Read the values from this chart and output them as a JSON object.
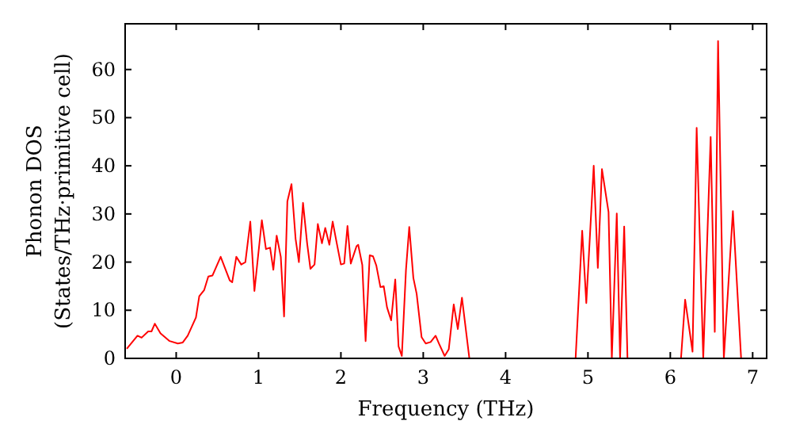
{
  "chart_data": {
    "type": "line",
    "xlabel": "Frequency (THz)",
    "ylabel": "Phonon DOS\n(States/THz·primitive cell)",
    "xlim": [
      -0.62,
      7.17
    ],
    "ylim": [
      0,
      69.5
    ],
    "xticks": [
      0,
      1,
      2,
      3,
      4,
      5,
      6,
      7
    ],
    "yticks": [
      0,
      10,
      20,
      30,
      40,
      50,
      60
    ],
    "grid": false,
    "marker": "none",
    "line_style": "solid",
    "series": [
      {
        "color": "#ff0000",
        "x": [
          -0.6,
          -0.47,
          -0.42,
          -0.34,
          -0.3,
          -0.26,
          -0.19,
          -0.08,
          0.02,
          0.08,
          0.14,
          0.24,
          0.28,
          0.34,
          0.39,
          0.44,
          0.54,
          0.65,
          0.68,
          0.73,
          0.79,
          0.84,
          0.9,
          0.95,
          1.04,
          1.09,
          1.14,
          1.18,
          1.22,
          1.27,
          1.31,
          1.35,
          1.4,
          1.45,
          1.49,
          1.54,
          1.59,
          1.63,
          1.68,
          1.72,
          1.77,
          1.81,
          1.86,
          1.9,
          1.95,
          2.0,
          2.04,
          2.08,
          2.12,
          2.19,
          2.21,
          2.26,
          2.3,
          2.35,
          2.39,
          2.43,
          2.48,
          2.52,
          2.56,
          2.61,
          2.66,
          2.7,
          2.74,
          2.79,
          2.83,
          2.88,
          2.92,
          2.98,
          3.03,
          3.09,
          3.15,
          3.19,
          3.26,
          3.31,
          3.37,
          3.42,
          3.47,
          3.56,
          4.85,
          4.93,
          4.98,
          5.07,
          5.12,
          5.17,
          5.25,
          5.29,
          5.35,
          5.39,
          5.44,
          5.48,
          6.13,
          6.18,
          6.27,
          6.32,
          6.4,
          6.49,
          6.54,
          6.58,
          6.65,
          6.76,
          6.86
        ],
        "values": [
          2,
          4.7,
          4.3,
          5.6,
          5.6,
          7.2,
          5.2,
          3.6,
          3.1,
          3.3,
          4.7,
          8.5,
          12.9,
          14.2,
          17,
          17.2,
          21.1,
          16.2,
          15.8,
          21.1,
          19.5,
          20,
          28.4,
          14,
          28.7,
          22.7,
          23,
          18.4,
          25.5,
          21.1,
          8.7,
          32.6,
          36.2,
          24.8,
          20,
          32.3,
          23.9,
          18.6,
          19.5,
          27.9,
          23.9,
          27.1,
          23.6,
          28.4,
          23.9,
          19.5,
          19.7,
          27.5,
          19.7,
          23.3,
          23.6,
          19.4,
          3.6,
          21.4,
          21.2,
          19.3,
          14.8,
          15,
          10.6,
          7.9,
          16.4,
          2.5,
          0.5,
          18.3,
          27.3,
          16.7,
          13.4,
          4.4,
          3.1,
          3.4,
          4.7,
          3.1,
          0.5,
          1.9,
          11.2,
          6.1,
          12.6,
          0,
          0,
          26.5,
          11.5,
          40,
          18.8,
          39.3,
          30.4,
          0,
          30.1,
          0,
          27.4,
          0,
          0,
          12.2,
          1.4,
          47.9,
          0,
          46,
          5.5,
          65.9,
          0,
          30.6,
          0
        ]
      }
    ]
  }
}
